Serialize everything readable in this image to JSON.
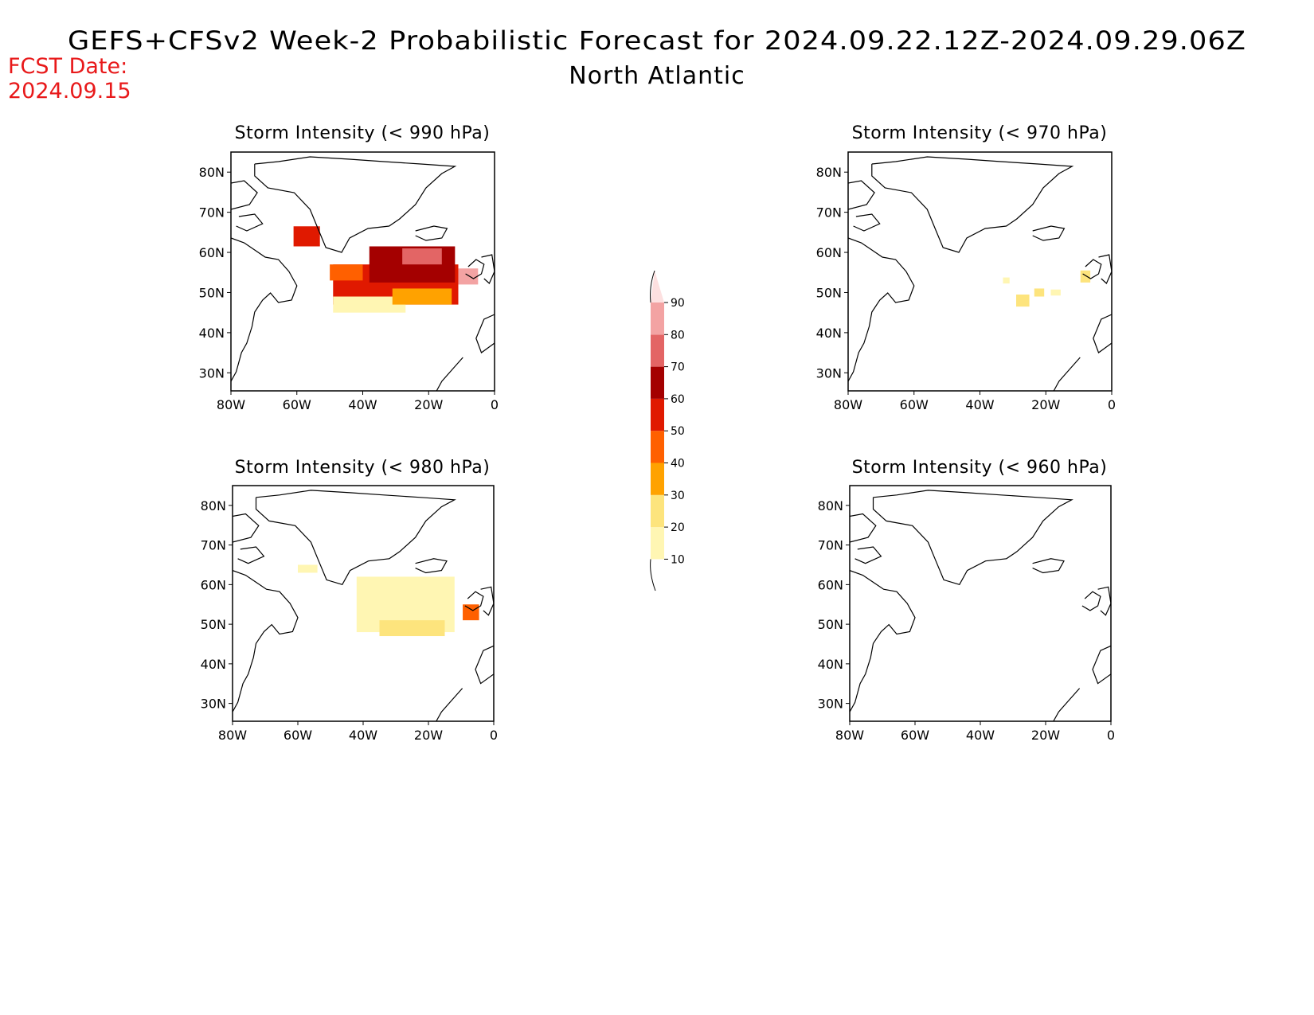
{
  "header": {
    "title": "GEFS+CFSv2 Week-2 Probabilistic Forecast for 2024.09.22.12Z-2024.09.29.06Z",
    "subtitle": "North Atlantic",
    "fcst_label": "FCST Date:",
    "fcst_date": "2024.09.15",
    "fcst_color": "#e8191a"
  },
  "axes": {
    "lon_ticks": [
      "80W",
      "60W",
      "40W",
      "20W",
      "0"
    ],
    "lat_ticks": [
      "80N",
      "70N",
      "60N",
      "50N",
      "40N",
      "30N"
    ]
  },
  "panels": [
    {
      "id": "p990",
      "title": "Storm Intensity (< 990 hPa)",
      "blobs": [
        {
          "lon": -57,
          "lat": 64,
          "w": 8,
          "h": 5,
          "level": 50
        },
        {
          "lon": -30,
          "lat": 52,
          "w": 38,
          "h": 10,
          "level": 50
        },
        {
          "lon": -25,
          "lat": 57,
          "w": 26,
          "h": 9,
          "level": 60
        },
        {
          "lon": -22,
          "lat": 59,
          "w": 12,
          "h": 4,
          "level": 70
        },
        {
          "lon": -8,
          "lat": 54,
          "w": 6,
          "h": 4,
          "level": 80
        },
        {
          "lon": -38,
          "lat": 47,
          "w": 22,
          "h": 4,
          "level": 10
        },
        {
          "lon": -22,
          "lat": 49,
          "w": 18,
          "h": 4,
          "level": 30
        },
        {
          "lon": -45,
          "lat": 55,
          "w": 10,
          "h": 4,
          "level": 40
        }
      ]
    },
    {
      "id": "p970",
      "title": "Storm Intensity (< 970 hPa)",
      "blobs": [
        {
          "lon": -27,
          "lat": 48,
          "w": 4,
          "h": 3,
          "level": 20
        },
        {
          "lon": -22,
          "lat": 50,
          "w": 3,
          "h": 2,
          "level": 20
        },
        {
          "lon": -17,
          "lat": 50,
          "w": 3,
          "h": 1.5,
          "level": 10
        },
        {
          "lon": -32,
          "lat": 53,
          "w": 2,
          "h": 1.5,
          "level": 10
        },
        {
          "lon": -8,
          "lat": 54,
          "w": 3,
          "h": 3,
          "level": 20
        }
      ]
    },
    {
      "id": "p980",
      "title": "Storm Intensity (< 980 hPa)",
      "blobs": [
        {
          "lon": -57,
          "lat": 64,
          "w": 6,
          "h": 2,
          "level": 10
        },
        {
          "lon": -27,
          "lat": 55,
          "w": 30,
          "h": 14,
          "level": 10
        },
        {
          "lon": -25,
          "lat": 49,
          "w": 20,
          "h": 4,
          "level": 20
        },
        {
          "lon": -7,
          "lat": 53,
          "w": 5,
          "h": 4,
          "level": 40
        }
      ]
    },
    {
      "id": "p960",
      "title": "Storm Intensity (< 960 hPa)",
      "blobs": []
    }
  ],
  "colorbar": {
    "labels": [
      "10",
      "20",
      "30",
      "40",
      "50",
      "60",
      "70",
      "80",
      "90"
    ],
    "levels": [
      {
        "value": 10,
        "color": "#fff6b3"
      },
      {
        "value": 20,
        "color": "#fde47d"
      },
      {
        "value": 30,
        "color": "#ffa200"
      },
      {
        "value": 40,
        "color": "#ff6000"
      },
      {
        "value": 50,
        "color": "#e01900"
      },
      {
        "value": 60,
        "color": "#a40000"
      },
      {
        "value": 70,
        "color": "#e36565"
      },
      {
        "value": 80,
        "color": "#f3a3a3"
      },
      {
        "value": 90,
        "color": "#fde0e0"
      }
    ]
  }
}
